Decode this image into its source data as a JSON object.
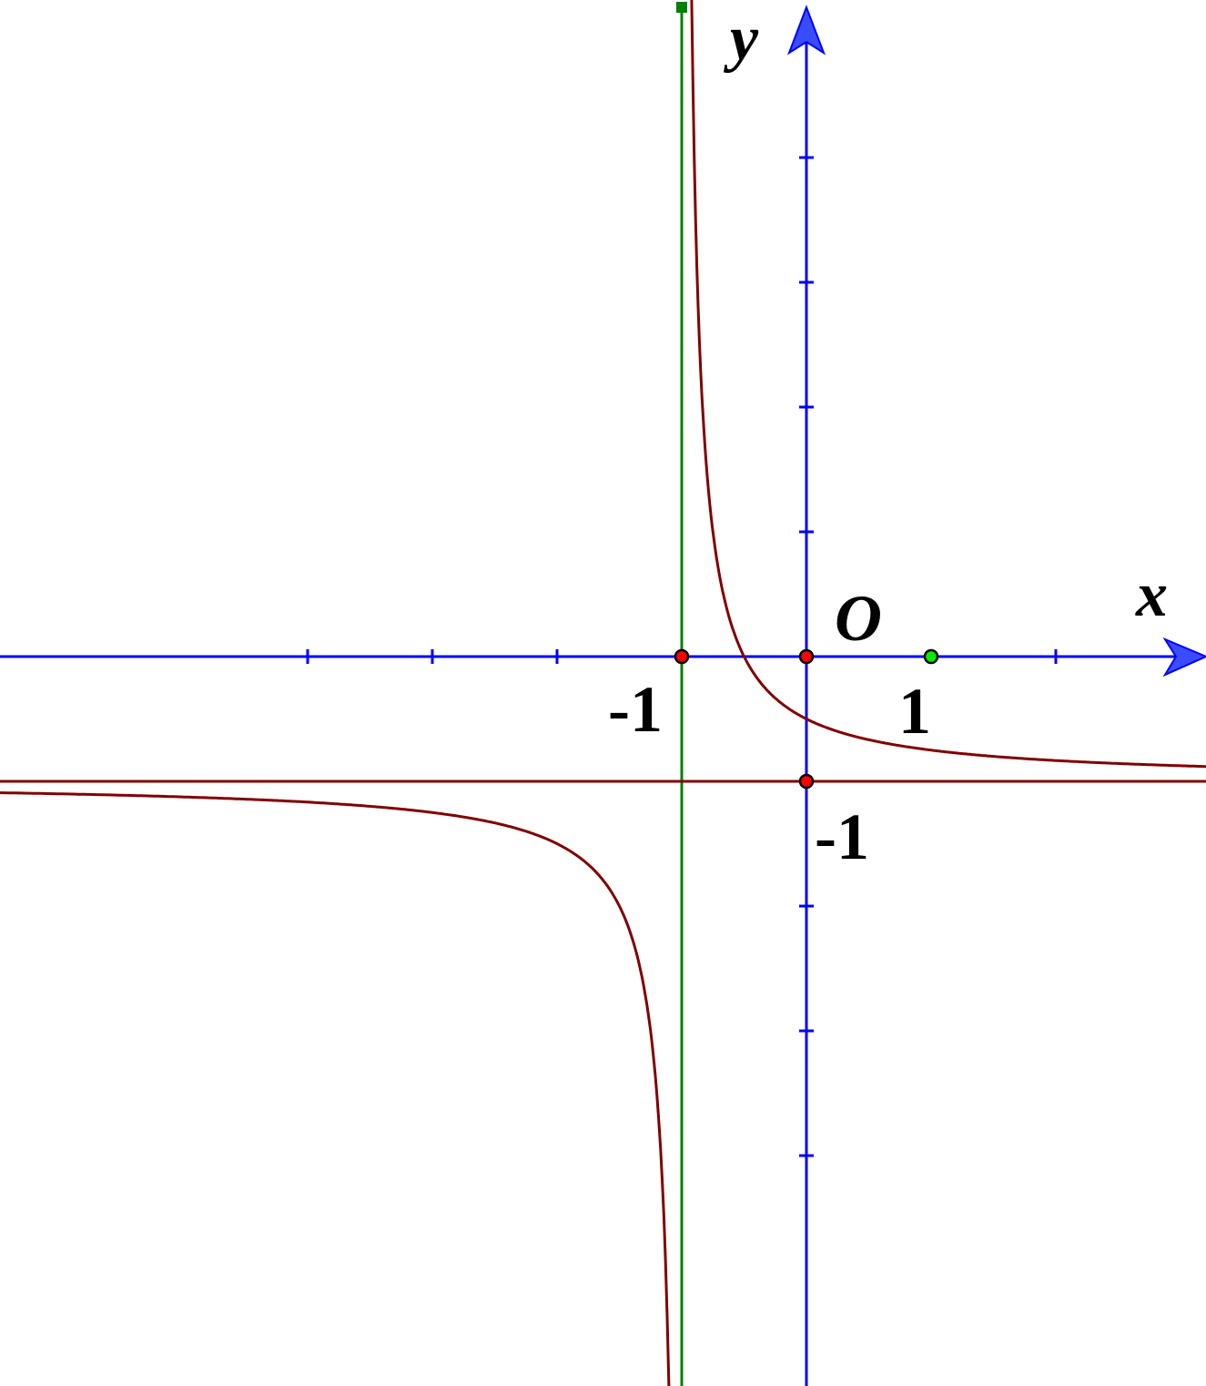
{
  "diagram": {
    "type": "function-graph",
    "axis_labels": {
      "x": "x",
      "y": "y",
      "origin": "O"
    },
    "tick_labels": {
      "x_neg_one": "-1",
      "x_one": "1",
      "y_neg_one": "-1"
    },
    "x_ticks": [
      -4,
      -3,
      -2,
      -1,
      0,
      1,
      2
    ],
    "y_ticks": [
      4,
      3,
      2,
      1,
      -1,
      -2,
      -3,
      -4
    ],
    "curve": {
      "vertical_asymptote": -1,
      "horizontal_asymptote": -1,
      "passes_through": [
        [
          0,
          -0.5
        ],
        [
          -0.5,
          0
        ]
      ]
    },
    "points": [
      {
        "x": -1,
        "y": 0,
        "color": "#ff0000"
      },
      {
        "x": 0,
        "y": 0,
        "color": "#ff0000"
      },
      {
        "x": 0,
        "y": -1,
        "color": "#ff0000"
      },
      {
        "x": 1,
        "y": 0,
        "color": "#00ee00"
      }
    ],
    "colors": {
      "axes": "#0000ff",
      "curve": "#800000",
      "vertical_line": "#008000",
      "horizontal_line": "#800000"
    }
  }
}
